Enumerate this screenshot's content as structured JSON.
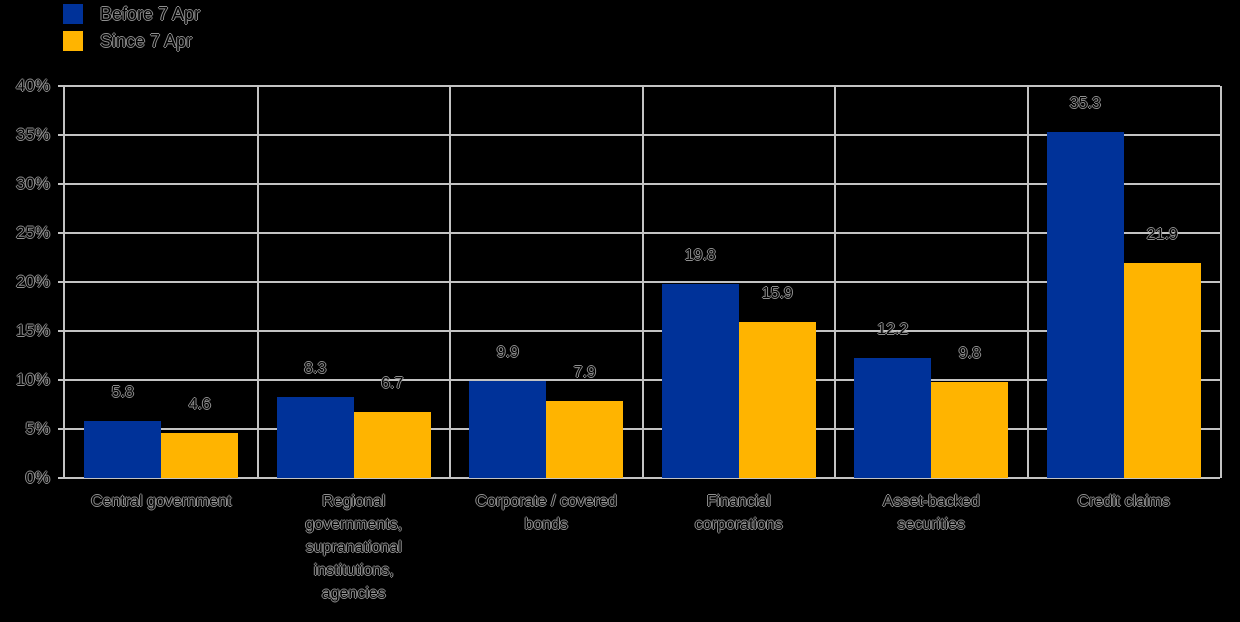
{
  "colors": {
    "background": "#000000",
    "grid": "#c3c3c3",
    "text_outline": "#8f8f8f",
    "series_blue": "#003299",
    "series_yellow": "#FFB400"
  },
  "chart_data": {
    "type": "bar",
    "title": "",
    "xlabel": "",
    "ylabel": "",
    "categories": [
      "Central government",
      "Regional governments, supranational institutions, agencies",
      "Corporate / covered bonds",
      "Financial corporations",
      "Asset-backed securities",
      "Credit claims"
    ],
    "category_lines": [
      [
        "Central government"
      ],
      [
        "Regional",
        "governments,",
        "supranational",
        "institutions,",
        "agencies"
      ],
      [
        "Corporate / covered",
        "bonds"
      ],
      [
        "Financial",
        "corporations"
      ],
      [
        "Asset-backed",
        "securities"
      ],
      [
        "Credit claims"
      ]
    ],
    "series": [
      {
        "name": "Before 7 Apr",
        "color": "#003299",
        "values": [
          5.8,
          8.3,
          9.9,
          19.8,
          12.2,
          35.3
        ]
      },
      {
        "name": "Since 7 Apr",
        "color": "#FFB400",
        "values": [
          4.6,
          6.7,
          7.9,
          15.9,
          9.8,
          21.9
        ]
      }
    ],
    "value_labels": [
      "5.8",
      "8.3",
      "9.9",
      "19.8",
      "12.2",
      "35.3",
      "4.6",
      "6.7",
      "7.9",
      "15.9",
      "9.8",
      "21.9"
    ],
    "ylim": [
      0,
      40
    ],
    "ytick_step": 5,
    "ytick_labels": [
      "0%",
      "5%",
      "10%",
      "15%",
      "20%",
      "25%",
      "30%",
      "35%",
      "40%"
    ],
    "grid": true,
    "legend_position": "top-left"
  }
}
